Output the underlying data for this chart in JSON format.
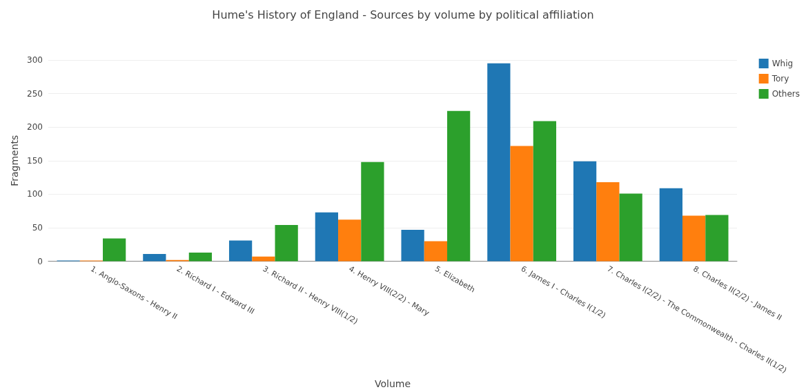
{
  "chart_data": {
    "type": "bar",
    "title": "Hume's History of England - Sources by volume by political affiliation",
    "xlabel": "Volume",
    "ylabel": "Fragments",
    "categories": [
      "1. Anglo-Saxons - Henry II",
      "2. Richard I - Edward III",
      "3. Richard II - Henry VIII(1/2)",
      "4. Henry VIII(2/2) - Mary",
      "5. Elizabeth",
      "6. James I - Charles I(1/2)",
      "7. Charles I(2/2) - The Commonwealth - Charles II(1/2)",
      "8. Charles II(2/2) - James II"
    ],
    "series": [
      {
        "name": "Whig",
        "color": "#1f77b4",
        "values": [
          1,
          11,
          31,
          73,
          47,
          295,
          149,
          109
        ]
      },
      {
        "name": "Tory",
        "color": "#ff7f0e",
        "values": [
          1,
          2,
          7,
          62,
          30,
          172,
          118,
          68
        ]
      },
      {
        "name": "Others",
        "color": "#2ca02c",
        "values": [
          34,
          13,
          54,
          148,
          224,
          209,
          101,
          69
        ]
      }
    ],
    "ylim": [
      0,
      300
    ],
    "yticks": [
      0,
      50,
      100,
      150,
      200,
      250,
      300
    ],
    "grid": "y",
    "legend": "top right"
  }
}
